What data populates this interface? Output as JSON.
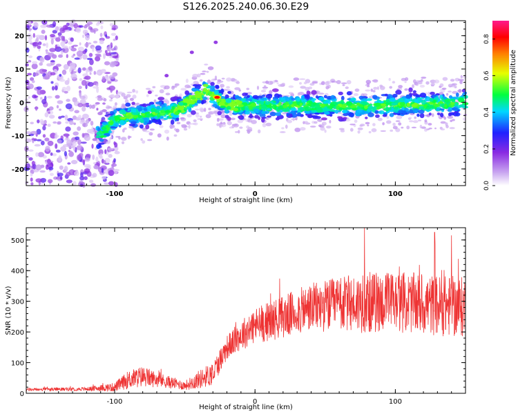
{
  "title": "S126.2025.240.06.30.E29",
  "chart_data": [
    {
      "type": "heatmap",
      "title": "S126.2025.240.06.30.E29",
      "xlabel": "Height of straight line (km)",
      "ylabel": "Frequency (Hz)",
      "xlim": [
        -163,
        150
      ],
      "ylim": [
        -25,
        24.5
      ],
      "xticks": [
        -100,
        0,
        100
      ],
      "yticks": [
        -20,
        -10,
        0,
        10,
        20
      ],
      "colorbar": {
        "label": "Normalized spectral amplitude",
        "range": [
          0,
          0.9
        ],
        "ticks": [
          0,
          0.2,
          0.4,
          0.6,
          0.8
        ],
        "colormap": [
          "#ffffff",
          "#8a2be2",
          "#0000ff",
          "#00ffff",
          "#00ff00",
          "#ffff00",
          "#ff0000",
          "#ff1493"
        ]
      },
      "ridge": {
        "description_points_x": [
          -110,
          -100,
          -90,
          -80,
          -70,
          -60,
          -50,
          -40,
          -35,
          -30,
          -20,
          0,
          50,
          100,
          150
        ],
        "description_points_y": [
          -10,
          -5,
          -4,
          -4,
          -3,
          -3,
          -1,
          2,
          4,
          2,
          -1,
          -1,
          -1,
          -1,
          0
        ],
        "peak_value": 0.9,
        "peak_x": -27,
        "peak_y": 1.5
      }
    },
    {
      "type": "line",
      "xlabel": "Height of straight line (km)",
      "ylabel": "SNR (10 * v/v)",
      "xlim": [
        -163,
        150
      ],
      "ylim": [
        0,
        540
      ],
      "xticks": [
        -100,
        0,
        100
      ],
      "yticks": [
        0,
        100,
        200,
        300,
        400,
        500
      ],
      "color": "#ee3333",
      "envelope": {
        "x": [
          -163,
          -120,
          -100,
          -90,
          -80,
          -70,
          -60,
          -50,
          -40,
          -30,
          -20,
          -10,
          0,
          20,
          40,
          60,
          80,
          100,
          120,
          150
        ],
        "mean": [
          12,
          14,
          20,
          45,
          55,
          45,
          35,
          25,
          45,
          65,
          150,
          190,
          220,
          250,
          280,
          290,
          295,
          300,
          290,
          280
        ],
        "spread": [
          5,
          6,
          15,
          30,
          35,
          25,
          20,
          15,
          30,
          40,
          40,
          50,
          60,
          70,
          80,
          90,
          100,
          100,
          100,
          100
        ]
      },
      "notable_peaks": [
        {
          "x": 78,
          "y": 540
        },
        {
          "x": 128,
          "y": 525
        },
        {
          "x": 140,
          "y": 515
        }
      ]
    }
  ]
}
